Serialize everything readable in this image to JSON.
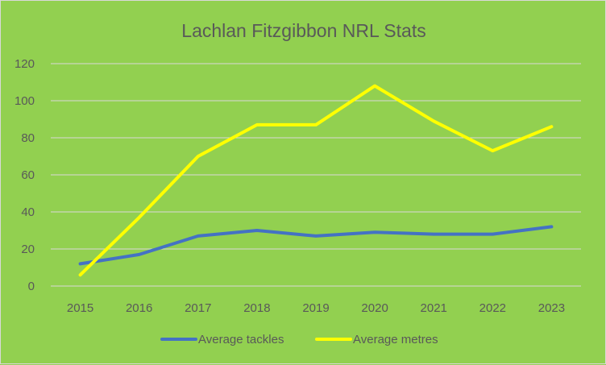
{
  "chart_data": {
    "type": "line",
    "title": "Lachlan Fitzgibbon NRL Stats",
    "categories": [
      "2015",
      "2016",
      "2017",
      "2018",
      "2019",
      "2020",
      "2021",
      "2022",
      "2023"
    ],
    "series": [
      {
        "name": "Average tackles",
        "color": "#4472c4",
        "values": [
          12,
          17,
          27,
          30,
          27,
          29,
          28,
          28,
          32
        ]
      },
      {
        "name": "Average metres",
        "color": "#ffff00",
        "values": [
          6,
          37,
          70,
          87,
          87,
          108,
          89,
          73,
          86
        ]
      }
    ],
    "ylim": [
      0,
      120
    ],
    "yticks": [
      0,
      20,
      40,
      60,
      80,
      100,
      120
    ],
    "grid": true,
    "legend_position": "bottom"
  },
  "colors": {
    "background": "#92d050",
    "gridline": "#d9d9d9",
    "text": "#595959"
  }
}
